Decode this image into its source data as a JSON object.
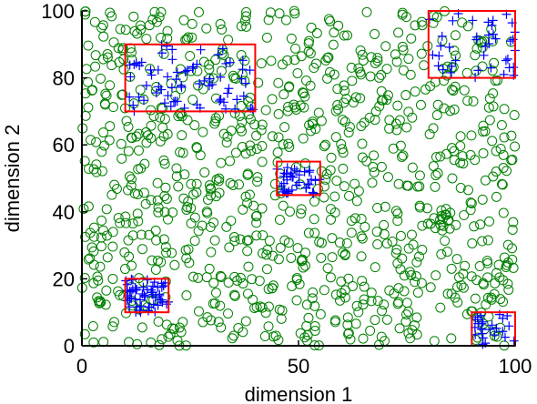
{
  "chart_data": {
    "type": "scatter",
    "xlabel": "dimension 1",
    "ylabel": "dimension 2",
    "xlim": [
      0,
      100
    ],
    "ylim": [
      0,
      100
    ],
    "x_ticks": [
      0,
      50,
      100
    ],
    "y_ticks": [
      0,
      20,
      40,
      60,
      80,
      100
    ],
    "x_tick_labels": [
      "0",
      "50",
      "100"
    ],
    "y_tick_labels": [
      "0",
      "20",
      "40",
      "60",
      "80",
      "100"
    ],
    "grid": false,
    "series": [
      {
        "marker": "circle",
        "color": "#008000",
        "count": 1000,
        "region": {
          "x": [
            0,
            100
          ],
          "y": [
            0,
            100
          ]
        },
        "sample_seed": 7
      },
      {
        "marker": "plus",
        "color": "#0000ff",
        "region": {
          "x": [
            10,
            40
          ],
          "y": [
            70,
            90
          ]
        },
        "count": 70,
        "sample_seed": 11
      },
      {
        "marker": "plus",
        "color": "#0000ff",
        "region": {
          "x": [
            80,
            100
          ],
          "y": [
            80,
            100
          ]
        },
        "count": 40,
        "sample_seed": 13
      },
      {
        "marker": "plus",
        "color": "#0000ff",
        "region": {
          "x": [
            45,
            55
          ],
          "y": [
            45,
            55
          ]
        },
        "count": 35,
        "sample_seed": 17
      },
      {
        "marker": "plus",
        "color": "#0000ff",
        "region": {
          "x": [
            10,
            20
          ],
          "y": [
            10,
            20
          ]
        },
        "count": 55,
        "sample_seed": 19
      },
      {
        "marker": "plus",
        "color": "#0000ff",
        "region": {
          "x": [
            90,
            100
          ],
          "y": [
            0,
            10
          ]
        },
        "count": 25,
        "sample_seed": 23
      }
    ],
    "annotations": [
      {
        "type": "rectangle",
        "color": "#ff0000",
        "x": [
          10,
          40
        ],
        "y": [
          70,
          90
        ]
      },
      {
        "type": "rectangle",
        "color": "#ff0000",
        "x": [
          80,
          100
        ],
        "y": [
          80,
          100
        ]
      },
      {
        "type": "rectangle",
        "color": "#ff0000",
        "x": [
          45,
          55
        ],
        "y": [
          45,
          55
        ]
      },
      {
        "type": "rectangle",
        "color": "#ff0000",
        "x": [
          10,
          20
        ],
        "y": [
          10,
          20
        ]
      },
      {
        "type": "rectangle",
        "color": "#ff0000",
        "x": [
          90,
          100
        ],
        "y": [
          0,
          10
        ]
      }
    ]
  }
}
